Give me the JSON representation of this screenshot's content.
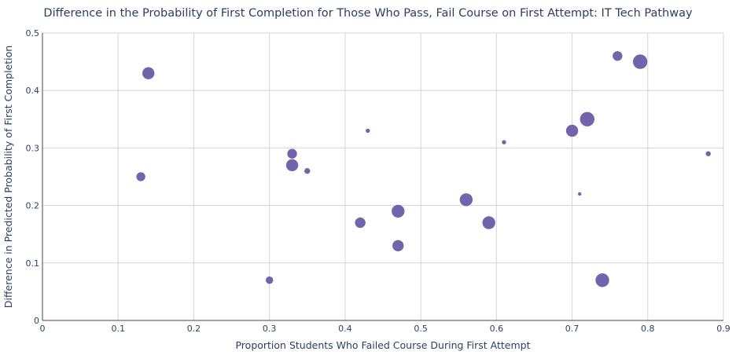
{
  "chart_data": {
    "type": "scatter",
    "title": "Difference in the Probability of First Completion for Those Who Pass, Fail Course on First Attempt: IT Tech Pathway",
    "xlabel": "Proportion Students Who Failed Course During First Attempt",
    "ylabel": "Difference in Predicted Probability of First Completion",
    "xlim": [
      0,
      0.9
    ],
    "ylim": [
      0,
      0.5
    ],
    "x_ticks": [
      "0",
      "0.1",
      "0.2",
      "0.3",
      "0.4",
      "0.5",
      "0.6",
      "0.7",
      "0.8",
      "0.9"
    ],
    "y_ticks": [
      "0",
      "0.1",
      "0.2",
      "0.3",
      "0.4",
      "0.5"
    ],
    "grid": true,
    "marker_color": "#6a5ca8",
    "points": [
      {
        "x": 0.14,
        "y": 0.43,
        "size": 8
      },
      {
        "x": 0.13,
        "y": 0.25,
        "size": 6
      },
      {
        "x": 0.3,
        "y": 0.07,
        "size": 5
      },
      {
        "x": 0.33,
        "y": 0.29,
        "size": 6.5
      },
      {
        "x": 0.33,
        "y": 0.27,
        "size": 8
      },
      {
        "x": 0.35,
        "y": 0.26,
        "size": 4
      },
      {
        "x": 0.42,
        "y": 0.17,
        "size": 7
      },
      {
        "x": 0.43,
        "y": 0.33,
        "size": 3
      },
      {
        "x": 0.47,
        "y": 0.19,
        "size": 8.5
      },
      {
        "x": 0.47,
        "y": 0.13,
        "size": 7.5
      },
      {
        "x": 0.56,
        "y": 0.21,
        "size": 8.5
      },
      {
        "x": 0.59,
        "y": 0.17,
        "size": 8.5
      },
      {
        "x": 0.61,
        "y": 0.31,
        "size": 3
      },
      {
        "x": 0.7,
        "y": 0.33,
        "size": 8
      },
      {
        "x": 0.71,
        "y": 0.22,
        "size": 2.5
      },
      {
        "x": 0.72,
        "y": 0.35,
        "size": 9.5
      },
      {
        "x": 0.74,
        "y": 0.07,
        "size": 9
      },
      {
        "x": 0.76,
        "y": 0.46,
        "size": 6.5
      },
      {
        "x": 0.79,
        "y": 0.45,
        "size": 9.5
      },
      {
        "x": 0.88,
        "y": 0.29,
        "size": 3.5
      }
    ]
  }
}
